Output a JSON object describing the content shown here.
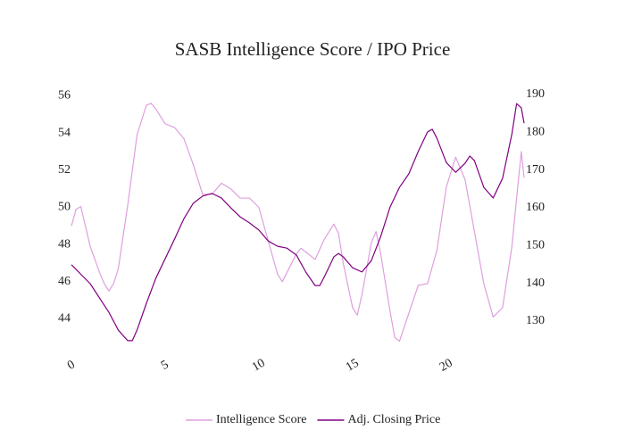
{
  "chart_data": {
    "type": "line",
    "title": "SASB Intelligence Score / IPO Price",
    "xlim": [
      0,
      24.15
    ],
    "xticks": [
      0,
      5,
      10,
      15,
      20
    ],
    "ylim": [
      42.2,
      56.6
    ],
    "yticks": [
      44,
      46,
      48,
      50,
      52,
      54,
      56
    ],
    "y2lim": [
      121.7,
      192.6
    ],
    "y2ticks": [
      130,
      140,
      150,
      160,
      170,
      180,
      190
    ],
    "grid": false,
    "legend": "bottom",
    "series": [
      {
        "name": "Intelligence Score",
        "color": "#dda0dd",
        "x": [
          0,
          0.25,
          0.5,
          1,
          1.5,
          1.75,
          2,
          2.25,
          2.5,
          3,
          3.5,
          4,
          4.25,
          4.5,
          5,
          5.5,
          6,
          6.5,
          7,
          7.5,
          8,
          8.5,
          9,
          9.5,
          10,
          10.5,
          11,
          11.25,
          11.5,
          12,
          12.25,
          12.5,
          13,
          13.5,
          14,
          14.25,
          14.5,
          15,
          15.25,
          15.5,
          16,
          16.25,
          16.5,
          17,
          17.25,
          17.5,
          18,
          18.5,
          19,
          19.5,
          20,
          20.5,
          21,
          21.5,
          22,
          22.5,
          23,
          23.5,
          23.75,
          24,
          24.15
        ],
        "values": [
          49.0,
          49.9,
          50.05,
          47.9,
          46.5,
          45.9,
          45.5,
          45.9,
          46.7,
          50.1,
          53.9,
          55.5,
          55.6,
          55.3,
          54.5,
          54.3,
          53.7,
          52.3,
          50.7,
          50.7,
          51.3,
          51.0,
          50.5,
          50.5,
          50.0,
          48.2,
          46.4,
          46.0,
          46.5,
          47.5,
          47.8,
          47.6,
          47.2,
          48.3,
          49.1,
          48.6,
          47.0,
          44.6,
          44.2,
          45.3,
          48.1,
          48.7,
          47.5,
          44.4,
          43.0,
          42.8,
          44.3,
          45.8,
          45.9,
          47.7,
          51.1,
          52.7,
          51.5,
          48.7,
          45.9,
          44.1,
          44.6,
          47.9,
          50.5,
          53.0,
          51.6
        ]
      },
      {
        "name": "Adj. Closing Price",
        "color": "#800080",
        "axis": "y2",
        "x": [
          0,
          1,
          2,
          2.5,
          3,
          3.25,
          3.5,
          4,
          4.5,
          5,
          5.5,
          6,
          6.5,
          7,
          7.5,
          8,
          8.5,
          9,
          9.5,
          10,
          10.5,
          11,
          11.5,
          12,
          12.5,
          13,
          13.25,
          13.5,
          14,
          14.25,
          14.5,
          15,
          15.5,
          16,
          16.5,
          17,
          17.5,
          18,
          18.5,
          19,
          19.25,
          19.5,
          20,
          20.5,
          21,
          21.25,
          21.5,
          22,
          22.5,
          23,
          23.5,
          23.75,
          24,
          24.15
        ],
        "values": [
          144.9,
          139.9,
          132.3,
          127.6,
          124.8,
          124.8,
          127.6,
          134.7,
          141.3,
          146.5,
          151.7,
          157.1,
          161.2,
          163.1,
          163.8,
          162.6,
          160.0,
          157.6,
          156.0,
          154.1,
          151.2,
          149.8,
          149.3,
          147.5,
          143.0,
          139.4,
          139.4,
          141.8,
          147.0,
          147.9,
          147.0,
          144.1,
          143.0,
          146.0,
          152.4,
          160.2,
          165.4,
          169.0,
          174.9,
          180.1,
          180.8,
          178.4,
          172.0,
          169.4,
          171.8,
          173.7,
          172.5,
          165.4,
          162.6,
          167.8,
          179.6,
          187.6,
          186.5,
          182.4
        ]
      }
    ]
  }
}
